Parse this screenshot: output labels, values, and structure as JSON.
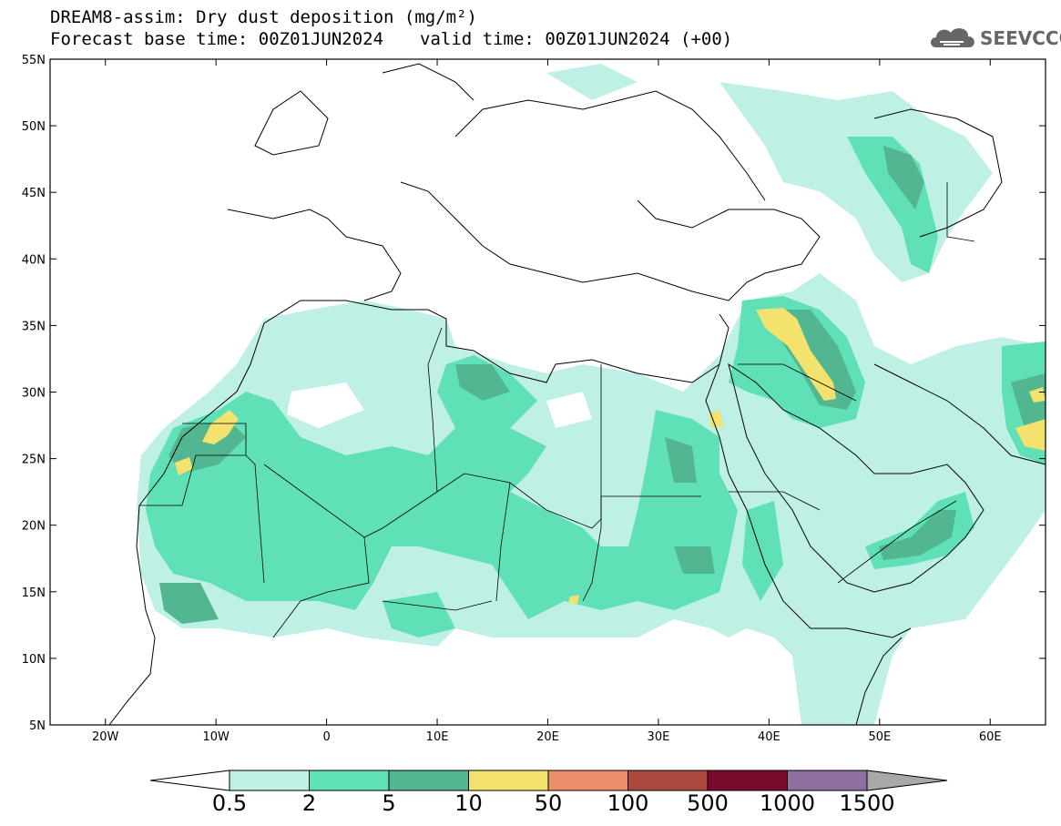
{
  "header": {
    "title_line1": "DREAM8-assim: Dry dust deposition (mg/m²)",
    "base_time": "Forecast base time: 00Z01JUN2024",
    "valid_time": "valid time: 00Z01JUN2024 (+00)"
  },
  "logo": {
    "text": "SEEVCCC",
    "icon": "cloud-logo-icon"
  },
  "map": {
    "projection": "lat-lon",
    "lon_range": [
      -25,
      65
    ],
    "lat_range": [
      5,
      55
    ],
    "lon_ticks": [
      {
        "value": -20,
        "label": "20W"
      },
      {
        "value": -10,
        "label": "10W"
      },
      {
        "value": 0,
        "label": "0"
      },
      {
        "value": 10,
        "label": "10E"
      },
      {
        "value": 20,
        "label": "20E"
      },
      {
        "value": 30,
        "label": "30E"
      },
      {
        "value": 40,
        "label": "40E"
      },
      {
        "value": 50,
        "label": "50E"
      },
      {
        "value": 60,
        "label": "60E"
      }
    ],
    "lat_ticks": [
      {
        "value": 55,
        "label": "55N"
      },
      {
        "value": 50,
        "label": "50N"
      },
      {
        "value": 45,
        "label": "45N"
      },
      {
        "value": 40,
        "label": "40N"
      },
      {
        "value": 35,
        "label": "35N"
      },
      {
        "value": 30,
        "label": "30N"
      },
      {
        "value": 25,
        "label": "25N"
      },
      {
        "value": 20,
        "label": "20N"
      },
      {
        "value": 15,
        "label": "15N"
      },
      {
        "value": 10,
        "label": "10N"
      },
      {
        "value": 5,
        "label": "5N"
      }
    ]
  },
  "colorbar": {
    "colors": [
      "#bff0e6",
      "#5fe0b6",
      "#52b690",
      "#f3e26e",
      "#eb8f6a",
      "#ac4a40",
      "#7a0a2a",
      "#8e6fa0"
    ],
    "under_color": "#ffffff",
    "over_color": "#a8a8a8",
    "labels": [
      "0.5",
      "2",
      "5",
      "10",
      "50",
      "100",
      "500",
      "1000",
      "1500"
    ]
  }
}
